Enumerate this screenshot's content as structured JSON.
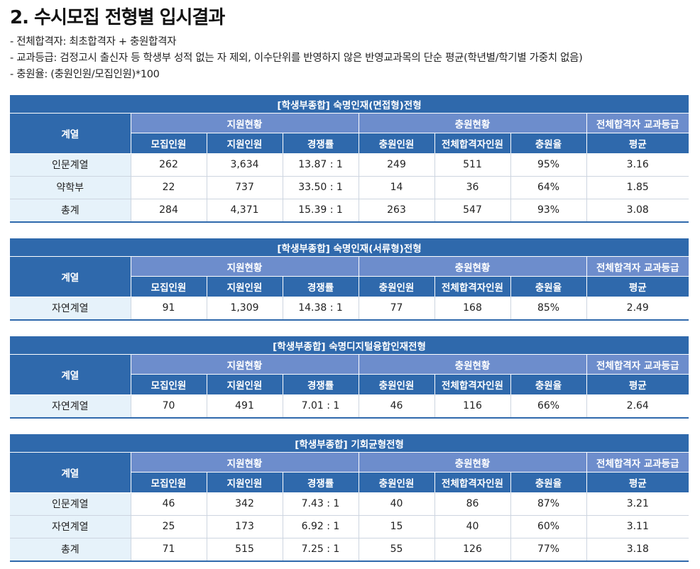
{
  "title": "2. 수시모집 전형별 입시결과",
  "notes": [
    "- 전체합격자: 최초합격자 + 충원합격자",
    "- 교과등급: 검정고시 출신자 등 학생부 성적 없는 자 제외, 이수단위를 반영하지 않은 반영교과목의 단순 평균(학년별/학기별 가중치 없음)",
    "- 충원율: (충원인원/모집인원)*100"
  ],
  "headers": {
    "category": "계열",
    "group_apply": "지원현황",
    "group_extra": "충원현황",
    "group_grade": "전체합격자 교과등급",
    "quota": "모집인원",
    "applicants": "지원인원",
    "ratio": "경쟁률",
    "extra": "충원인원",
    "total_pass": "전체합격자인원",
    "extra_rate": "충원율",
    "average": "평균"
  },
  "tables": [
    {
      "title": "[학생부종합] 숙명인재(면접형)전형",
      "rows": [
        {
          "category": "인문계열",
          "quota": "262",
          "applicants": "3,634",
          "ratio": "13.87 : 1",
          "extra": "249",
          "total_pass": "511",
          "extra_rate": "95%",
          "average": "3.16"
        },
        {
          "category": "약학부",
          "quota": "22",
          "applicants": "737",
          "ratio": "33.50 : 1",
          "extra": "14",
          "total_pass": "36",
          "extra_rate": "64%",
          "average": "1.85"
        },
        {
          "category": "총계",
          "quota": "284",
          "applicants": "4,371",
          "ratio": "15.39 : 1",
          "extra": "263",
          "total_pass": "547",
          "extra_rate": "93%",
          "average": "3.08"
        }
      ]
    },
    {
      "title": "[학생부종합] 숙명인재(서류형)전형",
      "rows": [
        {
          "category": "자연계열",
          "quota": "91",
          "applicants": "1,309",
          "ratio": "14.38 : 1",
          "extra": "77",
          "total_pass": "168",
          "extra_rate": "85%",
          "average": "2.49"
        }
      ]
    },
    {
      "title": "[학생부종합] 숙명디지털융합인재전형",
      "rows": [
        {
          "category": "자연계열",
          "quota": "70",
          "applicants": "491",
          "ratio": "7.01 : 1",
          "extra": "46",
          "total_pass": "116",
          "extra_rate": "66%",
          "average": "2.64"
        }
      ]
    },
    {
      "title": "[학생부종합] 기회균형전형",
      "rows": [
        {
          "category": "인문계열",
          "quota": "46",
          "applicants": "342",
          "ratio": "7.43 : 1",
          "extra": "40",
          "total_pass": "86",
          "extra_rate": "87%",
          "average": "3.21"
        },
        {
          "category": "자연계열",
          "quota": "25",
          "applicants": "173",
          "ratio": "6.92 : 1",
          "extra": "15",
          "total_pass": "40",
          "extra_rate": "60%",
          "average": "3.11"
        },
        {
          "category": "총계",
          "quota": "71",
          "applicants": "515",
          "ratio": "7.25 : 1",
          "extra": "55",
          "total_pass": "126",
          "extra_rate": "77%",
          "average": "3.18"
        }
      ]
    }
  ]
}
